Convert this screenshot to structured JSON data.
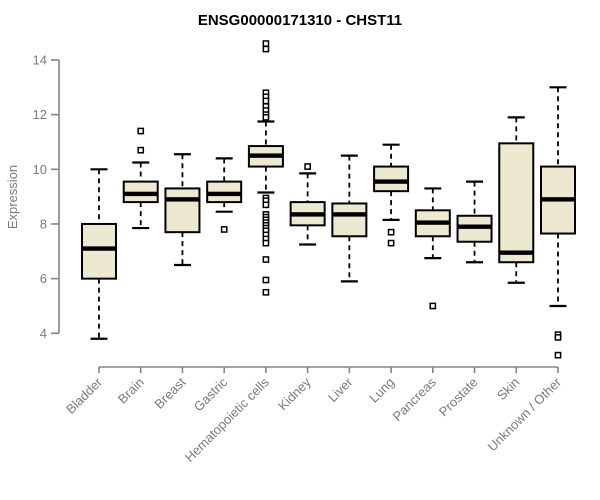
{
  "chart_data": {
    "type": "box",
    "title": "ENSG00000171310 - CHST11",
    "xlabel": "",
    "ylabel": "Expression",
    "ylim": [
      4,
      14
    ],
    "yticks": [
      4,
      6,
      8,
      10,
      12,
      14
    ],
    "grid": false,
    "legend": null,
    "colors": {
      "box_fill": "#EDE9D0",
      "box_stroke": "#000000",
      "median": "#000000",
      "whisker": "#000000",
      "axis_line": "#858585",
      "axis_text": "#7B7B7B",
      "title_text": "#000000",
      "background": "#FFFFFF"
    },
    "categories": [
      "Bladder",
      "Brain",
      "Breast",
      "Gastric",
      "Hematopoietic cells",
      "Kidney",
      "Liver",
      "Lung",
      "Pancreas",
      "Prostate",
      "Skin",
      "Unknown / Other"
    ],
    "series": [
      {
        "category": "Bladder",
        "whisker_low": 3.8,
        "q1": 6.0,
        "median": 7.1,
        "q3": 8.0,
        "whisker_high": 10.0,
        "outliers": []
      },
      {
        "category": "Brain",
        "whisker_low": 7.85,
        "q1": 8.8,
        "median": 9.1,
        "q3": 9.55,
        "whisker_high": 10.25,
        "outliers": [
          11.4,
          10.7
        ]
      },
      {
        "category": "Breast",
        "whisker_low": 6.5,
        "q1": 7.7,
        "median": 8.9,
        "q3": 9.3,
        "whisker_high": 10.55,
        "outliers": []
      },
      {
        "category": "Gastric",
        "whisker_low": 8.45,
        "q1": 8.8,
        "median": 9.1,
        "q3": 9.55,
        "whisker_high": 10.4,
        "outliers": [
          7.8
        ]
      },
      {
        "category": "Hematopoietic cells",
        "whisker_low": 9.15,
        "q1": 10.1,
        "median": 10.5,
        "q3": 10.85,
        "whisker_high": 11.75,
        "outliers": [
          14.6,
          14.4,
          12.8,
          12.65,
          12.5,
          12.3,
          12.15,
          12.0,
          11.9,
          8.95,
          8.85,
          8.7,
          8.35,
          8.25,
          8.15,
          8.05,
          7.95,
          7.85,
          7.75,
          7.6,
          7.45,
          7.3,
          6.7,
          5.95,
          5.5
        ]
      },
      {
        "category": "Kidney",
        "whisker_low": 7.25,
        "q1": 7.95,
        "median": 8.35,
        "q3": 8.8,
        "whisker_high": 9.85,
        "outliers": [
          10.1
        ]
      },
      {
        "category": "Liver",
        "whisker_low": 5.9,
        "q1": 7.55,
        "median": 8.35,
        "q3": 8.75,
        "whisker_high": 10.5,
        "outliers": []
      },
      {
        "category": "Lung",
        "whisker_low": 8.15,
        "q1": 9.2,
        "median": 9.55,
        "q3": 10.1,
        "whisker_high": 10.9,
        "outliers": [
          7.7,
          7.3
        ]
      },
      {
        "category": "Pancreas",
        "whisker_low": 6.75,
        "q1": 7.55,
        "median": 8.05,
        "q3": 8.5,
        "whisker_high": 9.3,
        "outliers": [
          5.0
        ]
      },
      {
        "category": "Prostate",
        "whisker_low": 6.6,
        "q1": 7.35,
        "median": 7.9,
        "q3": 8.3,
        "whisker_high": 9.55,
        "outliers": []
      },
      {
        "category": "Skin",
        "whisker_low": 5.85,
        "q1": 6.6,
        "median": 6.95,
        "q3": 10.95,
        "whisker_high": 11.9,
        "outliers": []
      },
      {
        "category": "Unknown / Other",
        "whisker_low": 5.0,
        "q1": 7.65,
        "median": 8.9,
        "q3": 10.1,
        "whisker_high": 13.0,
        "outliers": [
          3.95,
          3.85,
          3.2
        ]
      }
    ]
  }
}
